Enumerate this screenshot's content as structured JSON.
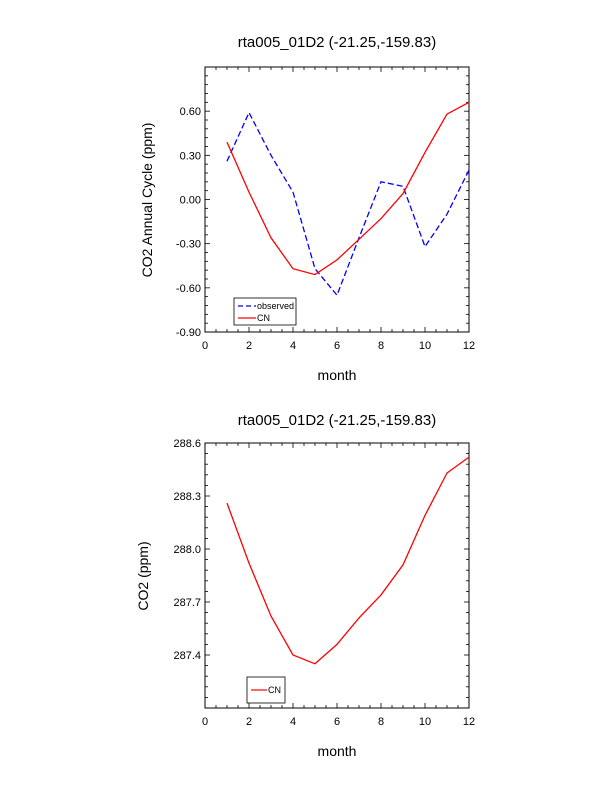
{
  "chart_data": [
    {
      "type": "line",
      "title": "rta005_01D2 (-21.25,-159.83)",
      "xlabel": "month",
      "ylabel": "CO2 Annual Cycle (ppm)",
      "xlim": [
        0,
        12
      ],
      "ylim": [
        -0.9,
        0.9
      ],
      "xticks": [
        "0",
        "2",
        "4",
        "6",
        "8",
        "10",
        "12"
      ],
      "yticks": [
        "-0.90",
        "-0.60",
        "-0.30",
        "0.00",
        "0.30",
        "0.60"
      ],
      "grid": false,
      "legend_position": "bottom-left",
      "series": [
        {
          "name": "observed",
          "color": "#0000ff",
          "dash": "dashed",
          "x": [
            1,
            2,
            3,
            4,
            5,
            6,
            7,
            8,
            9,
            10,
            11,
            12
          ],
          "y": [
            0.26,
            0.59,
            0.3,
            0.05,
            -0.47,
            -0.65,
            -0.26,
            0.12,
            0.09,
            -0.32,
            -0.1,
            0.2
          ]
        },
        {
          "name": "CN",
          "color": "#ff0000",
          "dash": "solid",
          "x": [
            1,
            2,
            3,
            4,
            5,
            6,
            7,
            8,
            9,
            10,
            11,
            12
          ],
          "y": [
            0.39,
            0.05,
            -0.26,
            -0.47,
            -0.51,
            -0.41,
            -0.27,
            -0.13,
            0.04,
            0.32,
            0.58,
            0.66
          ]
        }
      ]
    },
    {
      "type": "line",
      "title": "rta005_01D2 (-21.25,-159.83)",
      "xlabel": "month",
      "ylabel": "CO2 (ppm)",
      "xlim": [
        0,
        12
      ],
      "ylim": [
        287.1,
        288.6
      ],
      "xticks": [
        "0",
        "2",
        "4",
        "6",
        "8",
        "10",
        "12"
      ],
      "yticks": [
        "287.4",
        "287.7",
        "288.0",
        "288.3",
        "288.6"
      ],
      "grid": false,
      "legend_position": "bottom-left",
      "series": [
        {
          "name": "CN",
          "color": "#ff0000",
          "dash": "solid",
          "x": [
            1,
            2,
            3,
            4,
            5,
            6,
            7,
            8,
            9,
            10,
            11,
            12
          ],
          "y": [
            288.26,
            287.92,
            287.62,
            287.4,
            287.35,
            287.46,
            287.61,
            287.74,
            287.91,
            288.19,
            288.43,
            288.52
          ]
        }
      ]
    }
  ]
}
